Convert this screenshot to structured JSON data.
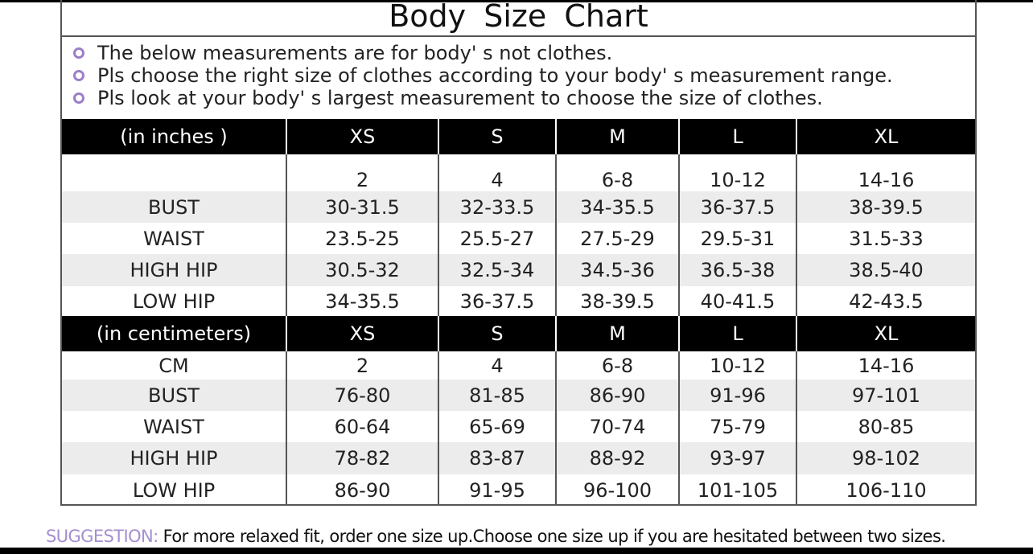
{
  "title": "Body  Size  Chart",
  "notes": [
    "The below measurements are for  body' s not clothes.",
    "Pls choose the right size of clothes according to your body' s  measurement range.",
    "Pls look  at your body' s  largest measurement to choose the size of clothes."
  ],
  "inches": {
    "header": [
      "(in  inches )",
      "XS",
      "S",
      "M",
      "L",
      "XL"
    ],
    "rows": [
      [
        "",
        "2",
        "4",
        "6-8",
        "10-12",
        "14-16"
      ],
      [
        "BUST",
        "30-31.5",
        "32-33.5",
        "34-35.5",
        "36-37.5",
        "38-39.5"
      ],
      [
        "WAIST",
        "23.5-25",
        "25.5-27",
        "27.5-29",
        "29.5-31",
        "31.5-33"
      ],
      [
        "HIGH HIP",
        "30.5-32",
        "32.5-34",
        "34.5-36",
        "36.5-38",
        "38.5-40"
      ],
      [
        "LOW HIP",
        "34-35.5",
        "36-37.5",
        "38-39.5",
        "40-41.5",
        "42-43.5"
      ]
    ]
  },
  "centimeters": {
    "header": [
      "(in centimeters)",
      "XS",
      "S",
      "M",
      "L",
      "XL"
    ],
    "rows": [
      [
        "CM",
        "2",
        "4",
        "6-8",
        "10-12",
        "14-16"
      ],
      [
        "BUST",
        "76-80",
        "81-85",
        "86-90",
        "91-96",
        "97-101"
      ],
      [
        "WAIST",
        "60-64",
        "65-69",
        "70-74",
        "75-79",
        "80-85"
      ],
      [
        "HIGH HIP",
        "78-82",
        "83-87",
        "88-92",
        "93-97",
        "98-102"
      ],
      [
        "LOW HIP",
        "86-90",
        "91-95",
        "96-100",
        "101-105",
        "106-110"
      ]
    ]
  },
  "suggestion": {
    "label": "SUGGESTION:",
    "text": " For more relaxed fit, order one size up.Choose one size up if you are hesitated between two sizes."
  },
  "colors": {
    "accent": "#a48ed0",
    "header_bg": "#000000",
    "stripe": "#ececec"
  }
}
